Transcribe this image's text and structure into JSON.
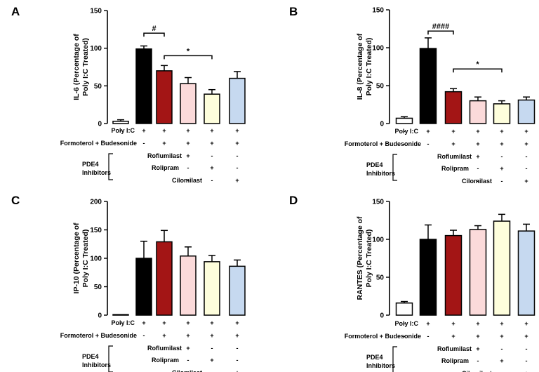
{
  "chart_data": [
    {
      "panel": "A",
      "type": "bar",
      "ylabel": "IL-6 (Percentage of Poly I:C Treated)",
      "ylabel_lines": [
        "IL-6 (Percentage of",
        "Poly  I:C Treated)"
      ],
      "ylim": [
        0,
        150
      ],
      "yticks": [
        0,
        50,
        100,
        150
      ],
      "values": [
        3,
        99,
        70,
        53,
        39,
        60
      ],
      "errors": [
        2,
        4,
        7,
        8,
        6,
        9
      ],
      "significance": [
        {
          "from": 1,
          "to": 2,
          "label": "#",
          "y": 120
        },
        {
          "from": 2,
          "to": 4,
          "label": "*",
          "y": 90
        }
      ]
    },
    {
      "panel": "B",
      "type": "bar",
      "ylabel": "IL-8 (Percentage of Poly I:C Treated)",
      "ylabel_lines": [
        "IL-8 (Percentage of",
        "Poly  I:C Treated)"
      ],
      "ylim": [
        0,
        150
      ],
      "yticks": [
        0,
        50,
        100,
        150
      ],
      "values": [
        7,
        99,
        42,
        30,
        26,
        31
      ],
      "errors": [
        2,
        14,
        4,
        5,
        4,
        4
      ],
      "significance": [
        {
          "from": 1,
          "to": 2,
          "label": "####",
          "y": 122
        },
        {
          "from": 2,
          "to": 4,
          "label": "*",
          "y": 72
        }
      ]
    },
    {
      "panel": "C",
      "type": "bar",
      "ylabel": "IP-10 (Percentage of Poly I:C Treated)",
      "ylabel_lines": [
        "IP-10 (Percentage of",
        "Poly  I:C Treated)"
      ],
      "ylim": [
        0,
        200
      ],
      "yticks": [
        0,
        50,
        100,
        150,
        200
      ],
      "values": [
        1,
        100,
        129,
        104,
        94,
        86
      ],
      "errors": [
        0,
        30,
        20,
        16,
        11,
        11
      ],
      "significance": []
    },
    {
      "panel": "D",
      "type": "bar",
      "ylabel": "RANTES (Percentage of Poly I:C Treated)",
      "ylabel_lines": [
        "RANTES (Percentage of",
        "Poly  I:C Treated)"
      ],
      "ylim": [
        0,
        150
      ],
      "yticks": [
        0,
        50,
        100,
        150
      ],
      "values": [
        16,
        100,
        105,
        113,
        124,
        111
      ],
      "errors": [
        2,
        19,
        7,
        5,
        9,
        9
      ],
      "significance": []
    }
  ],
  "bar_colors": [
    "#ffffff",
    "#000000",
    "#a31515",
    "#fbdada",
    "#fefedc",
    "#c6d9f0"
  ],
  "conditions": {
    "rows": [
      {
        "label": "Poly I:C",
        "marks": [
          "-",
          "+",
          "+",
          "+",
          "+",
          "+"
        ]
      },
      {
        "label": "Formoterol + Budesonide",
        "marks": [
          "-",
          "-",
          "+",
          "+",
          "+",
          "+"
        ]
      },
      {
        "label": "Roflumilast",
        "marks": [
          "",
          "",
          "",
          "+",
          "-",
          "-"
        ]
      },
      {
        "label": "Rolipram",
        "marks": [
          "",
          "",
          "",
          "-",
          "+",
          "-"
        ]
      },
      {
        "label": "Cilomilast",
        "marks": [
          "",
          "",
          "",
          "-",
          "-",
          "+"
        ]
      }
    ],
    "pde4_label_lines": [
      "PDE4",
      "Inhibitors"
    ]
  }
}
